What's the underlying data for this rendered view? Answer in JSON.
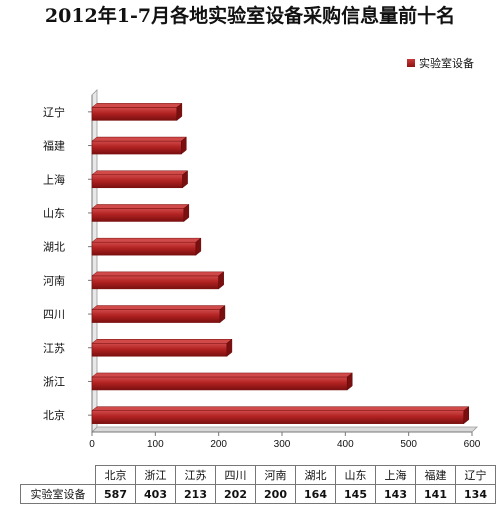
{
  "chart_data": {
    "type": "bar",
    "orientation": "horizontal",
    "title": "2012年1-7月各地实验室设备采购信息量前十名",
    "categories": [
      "北京",
      "浙江",
      "江苏",
      "四川",
      "河南",
      "湖北",
      "山东",
      "上海",
      "福建",
      "辽宁"
    ],
    "series": [
      {
        "name": "实验室设备",
        "values": [
          587,
          403,
          213,
          202,
          200,
          164,
          145,
          143,
          141,
          134
        ]
      }
    ],
    "xlim": [
      0,
      600
    ],
    "x_ticks": [
      "0",
      "100",
      "200",
      "300",
      "400",
      "500",
      "600"
    ],
    "legend": "top-right",
    "grid": false,
    "data_table": true,
    "colors": {
      "bar": "#b22222",
      "bar_top": "#d14a4a",
      "bar_dark": "#7a0f0f"
    }
  }
}
